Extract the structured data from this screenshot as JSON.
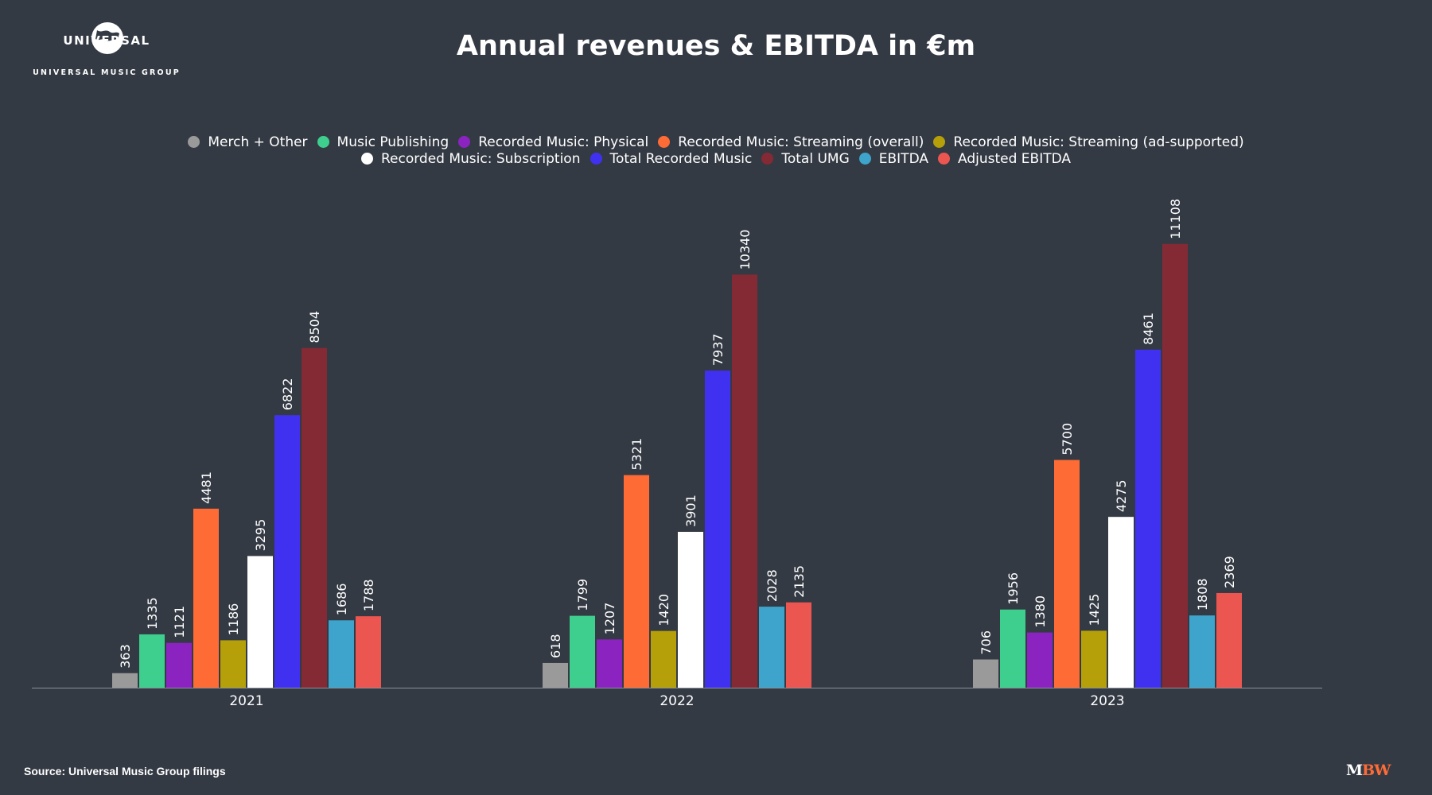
{
  "logo": {
    "wordmark": "UNIVERSAL",
    "subtitle": "UNIVERSAL MUSIC GROUP"
  },
  "brand": {
    "part1": "M",
    "part2": "BW",
    "color1": "#ffffff",
    "color2": "#ff6b35"
  },
  "source": "Source: Universal Music Group filings",
  "chart_data": {
    "type": "bar",
    "title": "Annual revenues & EBITDA in €m",
    "xlabel": "",
    "ylabel": "",
    "ylim": [
      0,
      12000
    ],
    "grid": false,
    "legend_position": "top-center",
    "categories": [
      "2021",
      "2022",
      "2023"
    ],
    "series": [
      {
        "name": "Merch + Other",
        "color": "#9a9a9a",
        "values": [
          363,
          618,
          706
        ]
      },
      {
        "name": "Music Publishing",
        "color": "#3ecf8e",
        "values": [
          1335,
          1799,
          1956
        ]
      },
      {
        "name": "Recorded Music: Physical",
        "color": "#8b23c1",
        "values": [
          1121,
          1207,
          1380
        ]
      },
      {
        "name": "Recorded Music: Streaming (overall)",
        "color": "#ff6b35",
        "values": [
          4481,
          5321,
          5700
        ]
      },
      {
        "name": "Recorded Music: Streaming (ad-supported)",
        "color": "#b5a009",
        "values": [
          1186,
          1420,
          1425
        ]
      },
      {
        "name": "Recorded Music: Subscription",
        "color": "#ffffff",
        "values": [
          3295,
          3901,
          4275
        ]
      },
      {
        "name": "Total Recorded Music",
        "color": "#4030f0",
        "values": [
          6822,
          7937,
          8461
        ]
      },
      {
        "name": "Total UMG",
        "color": "#842a34",
        "values": [
          8504,
          10340,
          11108
        ]
      },
      {
        "name": "EBITDA",
        "color": "#3ea4cb",
        "values": [
          1686,
          2028,
          1808
        ]
      },
      {
        "name": "Adjusted EBITDA",
        "color": "#ec5651",
        "values": [
          1788,
          2135,
          2369
        ]
      }
    ]
  }
}
